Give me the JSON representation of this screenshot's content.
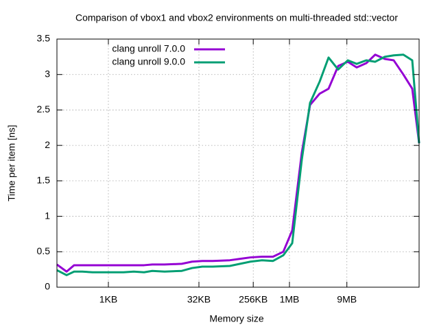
{
  "chart_data": {
    "type": "line",
    "title": "Comparison of vbox1 and vbox2 environments on multi-threaded std::vector",
    "x_label": "Memory size",
    "y_label": "Time per item [ns]",
    "xscale": "log",
    "grid": true,
    "legend": "top left",
    "x": [
      143,
      207,
      276,
      378,
      560,
      830,
      1231,
      1825,
      2706,
      4011,
      5496,
      8817,
      16999,
      25200,
      37360,
      55400,
      106800,
      158400,
      234800,
      366900,
      558400,
      827900,
      1165000,
      1682000,
      2305000,
      3329000,
      4684000,
      6762000,
      9769000,
      13740000,
      19840000,
      27910000,
      40310000,
      56720000,
      81910000,
      115200000,
      149800000
    ],
    "series": [
      {
        "name": "clang unroll 7.0.0",
        "color": "#9400d3",
        "values": [
          0.32,
          0.22,
          0.31,
          0.31,
          0.31,
          0.31,
          0.31,
          0.31,
          0.31,
          0.31,
          0.32,
          0.32,
          0.33,
          0.36,
          0.37,
          0.37,
          0.38,
          0.4,
          0.42,
          0.43,
          0.43,
          0.5,
          0.8,
          1.9,
          2.57,
          2.73,
          2.8,
          3.12,
          3.18,
          3.1,
          3.16,
          3.28,
          3.22,
          3.2,
          3.0,
          2.8,
          2.03
        ]
      },
      {
        "name": "clang unroll 9.0.0",
        "color": "#009e73",
        "values": [
          0.24,
          0.17,
          0.22,
          0.22,
          0.21,
          0.21,
          0.21,
          0.21,
          0.22,
          0.21,
          0.23,
          0.22,
          0.23,
          0.27,
          0.29,
          0.29,
          0.3,
          0.33,
          0.36,
          0.38,
          0.37,
          0.45,
          0.62,
          1.8,
          2.6,
          2.9,
          3.24,
          3.07,
          3.2,
          3.15,
          3.2,
          3.18,
          3.25,
          3.27,
          3.28,
          3.2,
          2.03
        ]
      }
    ],
    "xlim": [
      143,
      149800000
    ],
    "xticks": [
      {
        "value": 1024,
        "label": "1KB"
      },
      {
        "value": 32768,
        "label": "32KB"
      },
      {
        "value": 262144,
        "label": "256KB"
      },
      {
        "value": 1048576,
        "label": "1MB"
      },
      {
        "value": 9437184,
        "label": "9MB"
      }
    ],
    "ylim": [
      0,
      3.5
    ],
    "yticks": [
      0,
      0.5,
      1,
      1.5,
      2,
      2.5,
      3,
      3.5
    ]
  }
}
